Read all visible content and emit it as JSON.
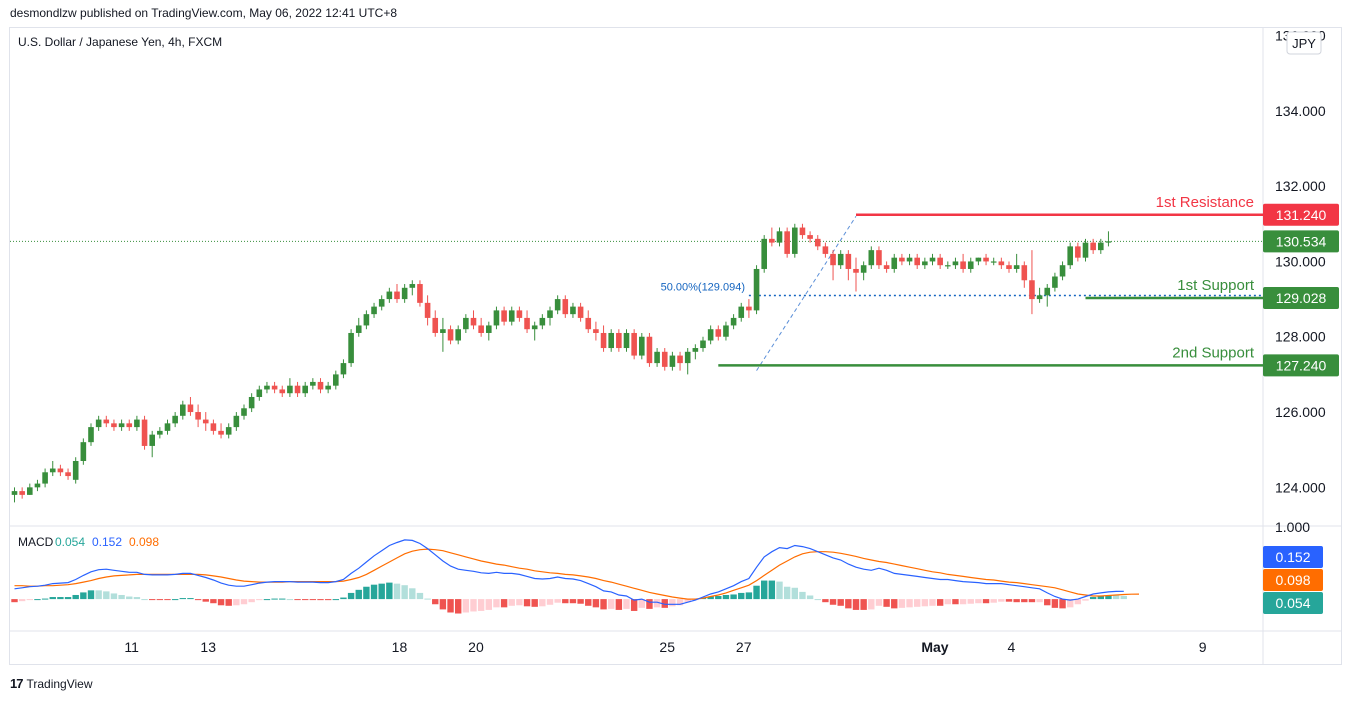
{
  "header": {
    "publisher_line": "desmondlzw published on TradingView.com, May 06, 2022 12:41 UTC+8"
  },
  "footer": {
    "brand": "TradingView"
  },
  "chart_data": {
    "type": "candlestick",
    "title": "U.S. Dollar / Japanese Yen, 4h, FXCM",
    "currency": "JPY",
    "ylim": [
      123.0,
      136.2
    ],
    "y_ticks": [
      "124.000",
      "126.000",
      "128.000",
      "130.000",
      "132.000",
      "134.000",
      "136.000"
    ],
    "x_ticks": [
      "11",
      "13",
      "18",
      "20",
      "25",
      "27",
      "May",
      "4",
      "9"
    ],
    "x_tick_bar_index": [
      8,
      18,
      43,
      53,
      78,
      88,
      113,
      123,
      148
    ],
    "grid": false,
    "colors": {
      "up": "#388e3c",
      "down": "#ef5350",
      "resistance": "#f23645",
      "support": "#388e3c",
      "fib": "#1565c0"
    },
    "candles": [
      [
        123.8,
        124.0,
        123.6,
        123.9
      ],
      [
        123.9,
        124.0,
        123.7,
        123.8
      ],
      [
        123.8,
        124.1,
        123.8,
        124.0
      ],
      [
        124.0,
        124.2,
        123.9,
        124.1
      ],
      [
        124.1,
        124.5,
        124.0,
        124.4
      ],
      [
        124.4,
        124.7,
        124.3,
        124.5
      ],
      [
        124.5,
        124.6,
        124.3,
        124.4
      ],
      [
        124.4,
        124.5,
        124.2,
        124.3
      ],
      [
        124.2,
        124.8,
        124.1,
        124.7
      ],
      [
        124.7,
        125.3,
        124.6,
        125.2
      ],
      [
        125.2,
        125.7,
        125.1,
        125.6
      ],
      [
        125.6,
        125.9,
        125.5,
        125.8
      ],
      [
        125.8,
        125.9,
        125.6,
        125.7
      ],
      [
        125.7,
        125.8,
        125.5,
        125.6
      ],
      [
        125.6,
        125.8,
        125.5,
        125.7
      ],
      [
        125.7,
        125.8,
        125.5,
        125.6
      ],
      [
        125.6,
        125.9,
        125.5,
        125.8
      ],
      [
        125.8,
        125.9,
        125.0,
        125.1
      ],
      [
        125.1,
        125.5,
        124.8,
        125.4
      ],
      [
        125.4,
        125.6,
        125.3,
        125.5
      ],
      [
        125.5,
        125.8,
        125.4,
        125.7
      ],
      [
        125.7,
        126.0,
        125.6,
        125.9
      ],
      [
        125.9,
        126.3,
        125.8,
        126.2
      ],
      [
        126.2,
        126.4,
        125.9,
        126.0
      ],
      [
        126.0,
        126.2,
        125.6,
        125.8
      ],
      [
        125.8,
        126.0,
        125.5,
        125.7
      ],
      [
        125.7,
        125.8,
        125.4,
        125.5
      ],
      [
        125.5,
        125.7,
        125.3,
        125.4
      ],
      [
        125.4,
        125.7,
        125.3,
        125.6
      ],
      [
        125.6,
        126.0,
        125.5,
        125.9
      ],
      [
        125.9,
        126.2,
        125.8,
        126.1
      ],
      [
        126.1,
        126.5,
        126.0,
        126.4
      ],
      [
        126.4,
        126.7,
        126.3,
        126.6
      ],
      [
        126.6,
        126.8,
        126.5,
        126.7
      ],
      [
        126.7,
        126.8,
        126.5,
        126.6
      ],
      [
        126.6,
        126.7,
        126.4,
        126.5
      ],
      [
        126.5,
        126.9,
        126.4,
        126.7
      ],
      [
        126.7,
        126.8,
        126.4,
        126.5
      ],
      [
        126.5,
        126.8,
        126.4,
        126.7
      ],
      [
        126.7,
        126.9,
        126.6,
        126.8
      ],
      [
        126.8,
        126.9,
        126.5,
        126.6
      ],
      [
        126.6,
        126.8,
        126.5,
        126.7
      ],
      [
        126.7,
        127.1,
        126.6,
        127.0
      ],
      [
        127.0,
        127.4,
        126.9,
        127.3
      ],
      [
        127.3,
        128.2,
        127.2,
        128.1
      ],
      [
        128.1,
        128.5,
        128.0,
        128.3
      ],
      [
        128.3,
        128.7,
        128.2,
        128.6
      ],
      [
        128.6,
        128.9,
        128.5,
        128.8
      ],
      [
        128.8,
        129.1,
        128.7,
        129.0
      ],
      [
        129.0,
        129.3,
        128.9,
        129.2
      ],
      [
        129.2,
        129.4,
        128.9,
        129.0
      ],
      [
        129.0,
        129.4,
        128.9,
        129.3
      ],
      [
        129.3,
        129.5,
        129.1,
        129.4
      ],
      [
        129.4,
        129.5,
        128.8,
        128.9
      ],
      [
        128.9,
        129.1,
        128.3,
        128.5
      ],
      [
        128.5,
        128.7,
        128.0,
        128.1
      ],
      [
        128.1,
        128.5,
        127.6,
        128.2
      ],
      [
        128.2,
        128.3,
        127.8,
        127.9
      ],
      [
        127.9,
        128.3,
        127.8,
        128.2
      ],
      [
        128.2,
        128.6,
        128.1,
        128.5
      ],
      [
        128.5,
        128.7,
        128.2,
        128.3
      ],
      [
        128.3,
        128.5,
        128.0,
        128.1
      ],
      [
        128.1,
        128.4,
        127.9,
        128.3
      ],
      [
        128.3,
        128.8,
        128.2,
        128.7
      ],
      [
        128.7,
        128.8,
        128.3,
        128.4
      ],
      [
        128.4,
        128.8,
        128.3,
        128.7
      ],
      [
        128.7,
        128.8,
        128.4,
        128.5
      ],
      [
        128.5,
        128.7,
        128.1,
        128.2
      ],
      [
        128.2,
        128.4,
        127.9,
        128.3
      ],
      [
        128.3,
        128.6,
        128.2,
        128.5
      ],
      [
        128.5,
        128.8,
        128.3,
        128.7
      ],
      [
        128.7,
        129.1,
        128.6,
        129.0
      ],
      [
        129.0,
        129.1,
        128.5,
        128.6
      ],
      [
        128.6,
        128.9,
        128.5,
        128.8
      ],
      [
        128.8,
        128.9,
        128.4,
        128.5
      ],
      [
        128.5,
        128.7,
        128.1,
        128.2
      ],
      [
        128.2,
        128.4,
        127.9,
        128.1
      ],
      [
        128.1,
        128.3,
        127.6,
        127.7
      ],
      [
        127.7,
        128.2,
        127.6,
        128.1
      ],
      [
        128.1,
        128.2,
        127.6,
        127.7
      ],
      [
        127.7,
        128.2,
        127.6,
        128.1
      ],
      [
        128.1,
        128.2,
        127.4,
        127.5
      ],
      [
        127.5,
        128.1,
        127.4,
        128.0
      ],
      [
        128.0,
        128.1,
        127.2,
        127.3
      ],
      [
        127.3,
        127.7,
        127.2,
        127.6
      ],
      [
        127.6,
        127.7,
        127.1,
        127.2
      ],
      [
        127.2,
        127.6,
        127.1,
        127.5
      ],
      [
        127.5,
        127.6,
        127.1,
        127.3
      ],
      [
        127.3,
        127.7,
        127.0,
        127.6
      ],
      [
        127.6,
        127.8,
        127.4,
        127.7
      ],
      [
        127.7,
        128.0,
        127.6,
        127.9
      ],
      [
        127.9,
        128.3,
        127.8,
        128.2
      ],
      [
        128.2,
        128.3,
        127.9,
        128.0
      ],
      [
        128.0,
        128.4,
        127.9,
        128.3
      ],
      [
        128.3,
        128.6,
        128.2,
        128.5
      ],
      [
        128.5,
        128.9,
        128.4,
        128.8
      ],
      [
        128.8,
        129.0,
        128.5,
        128.7
      ],
      [
        128.7,
        129.9,
        128.6,
        129.8
      ],
      [
        129.8,
        130.7,
        129.7,
        130.6
      ],
      [
        130.6,
        130.9,
        130.4,
        130.5
      ],
      [
        130.5,
        130.9,
        130.4,
        130.8
      ],
      [
        130.8,
        130.9,
        130.1,
        130.2
      ],
      [
        130.2,
        131.0,
        130.1,
        130.9
      ],
      [
        130.9,
        131.0,
        130.6,
        130.7
      ],
      [
        130.7,
        130.8,
        130.5,
        130.6
      ],
      [
        130.6,
        130.7,
        130.3,
        130.4
      ],
      [
        130.4,
        130.5,
        130.1,
        130.2
      ],
      [
        130.2,
        130.3,
        129.5,
        129.9
      ],
      [
        129.9,
        130.3,
        129.8,
        130.2
      ],
      [
        130.2,
        130.3,
        129.5,
        129.8
      ],
      [
        129.8,
        130.1,
        129.2,
        129.7
      ],
      [
        129.7,
        130.0,
        129.5,
        129.9
      ],
      [
        129.9,
        130.4,
        129.8,
        130.3
      ],
      [
        130.3,
        130.4,
        129.8,
        129.9
      ],
      [
        129.9,
        130.0,
        129.7,
        129.8
      ],
      [
        129.8,
        130.2,
        129.7,
        130.1
      ],
      [
        130.1,
        130.2,
        129.9,
        130.0
      ],
      [
        130.0,
        130.2,
        129.9,
        130.1
      ],
      [
        130.1,
        130.2,
        129.8,
        129.9
      ],
      [
        129.9,
        130.1,
        129.8,
        130.0
      ],
      [
        130.0,
        130.2,
        129.9,
        130.1
      ],
      [
        130.1,
        130.2,
        129.8,
        129.9
      ],
      [
        129.9,
        130.0,
        129.8,
        129.9
      ],
      [
        129.9,
        130.1,
        129.8,
        130.0
      ],
      [
        130.0,
        130.2,
        129.7,
        129.8
      ],
      [
        129.8,
        130.1,
        129.7,
        130.0
      ],
      [
        130.0,
        130.1,
        129.9,
        130.1
      ],
      [
        130.1,
        130.2,
        129.9,
        130.0
      ],
      [
        130.0,
        130.1,
        129.9,
        130.0
      ],
      [
        130.0,
        130.1,
        129.8,
        129.9
      ],
      [
        129.9,
        130.0,
        129.7,
        129.8
      ],
      [
        129.8,
        130.2,
        129.7,
        129.9
      ],
      [
        129.9,
        130.0,
        129.3,
        129.5
      ],
      [
        129.5,
        130.3,
        128.6,
        129.0
      ],
      [
        129.0,
        129.3,
        128.9,
        129.1
      ],
      [
        129.1,
        129.4,
        128.8,
        129.3
      ],
      [
        129.3,
        129.7,
        129.2,
        129.6
      ],
      [
        129.6,
        130.0,
        129.5,
        129.9
      ],
      [
        129.9,
        130.5,
        129.8,
        130.4
      ],
      [
        130.4,
        130.5,
        130.0,
        130.1
      ],
      [
        130.1,
        130.6,
        130.0,
        130.5
      ],
      [
        130.5,
        130.6,
        130.2,
        130.3
      ],
      [
        130.3,
        130.6,
        130.2,
        130.5
      ],
      [
        130.5,
        130.8,
        130.4,
        130.534
      ]
    ],
    "levels": [
      {
        "name": "1st Resistance",
        "value": "131.240",
        "color": "#f23645"
      },
      {
        "name": "1st Support",
        "value": "129.028",
        "color": "#388e3c"
      },
      {
        "name": "2nd Support",
        "value": "127.240",
        "color": "#388e3c"
      }
    ],
    "current_price": "130.534",
    "fib_label": "50.00%(129.094)",
    "macd": {
      "label": "MACD",
      "values": [
        "0.054",
        "0.152",
        "0.098"
      ],
      "value_colors": [
        "#26a69a",
        "#2962ff",
        "#ff6d00"
      ],
      "top_tick": "1.000",
      "hist_range": [
        -0.6,
        1.4
      ],
      "macd_line": [
        0.2,
        0.22,
        0.24,
        0.25,
        0.27,
        0.3,
        0.31,
        0.32,
        0.38,
        0.46,
        0.53,
        0.57,
        0.58,
        0.56,
        0.54,
        0.52,
        0.52,
        0.48,
        0.47,
        0.47,
        0.47,
        0.48,
        0.5,
        0.5,
        0.46,
        0.42,
        0.37,
        0.31,
        0.27,
        0.25,
        0.25,
        0.28,
        0.31,
        0.33,
        0.34,
        0.34,
        0.34,
        0.33,
        0.33,
        0.33,
        0.32,
        0.32,
        0.34,
        0.38,
        0.5,
        0.6,
        0.72,
        0.84,
        0.94,
        1.04,
        1.1,
        1.15,
        1.14,
        1.08,
        0.98,
        0.86,
        0.74,
        0.64,
        0.58,
        0.56,
        0.54,
        0.51,
        0.5,
        0.52,
        0.5,
        0.5,
        0.48,
        0.44,
        0.4,
        0.39,
        0.4,
        0.43,
        0.4,
        0.39,
        0.36,
        0.3,
        0.24,
        0.16,
        0.14,
        0.08,
        0.06,
        -0.02,
        0.0,
        -0.06,
        -0.06,
        -0.1,
        -0.1,
        -0.1,
        -0.06,
        -0.02,
        0.04,
        0.1,
        0.14,
        0.2,
        0.26,
        0.34,
        0.4,
        0.62,
        0.82,
        0.92,
        1.0,
        0.98,
        1.04,
        1.02,
        0.98,
        0.92,
        0.86,
        0.8,
        0.76,
        0.68,
        0.62,
        0.58,
        0.56,
        0.6,
        0.56,
        0.5,
        0.48,
        0.46,
        0.44,
        0.42,
        0.4,
        0.38,
        0.38,
        0.36,
        0.34,
        0.33,
        0.32,
        0.3,
        0.3,
        0.3,
        0.28,
        0.26,
        0.24,
        0.22,
        0.2,
        0.12,
        0.05,
        0.0,
        -0.02,
        0.0,
        0.05,
        0.1,
        0.12,
        0.14,
        0.15,
        0.152
      ],
      "signal_line": [
        0.26,
        0.26,
        0.25,
        0.25,
        0.26,
        0.26,
        0.27,
        0.28,
        0.3,
        0.33,
        0.36,
        0.4,
        0.43,
        0.45,
        0.46,
        0.47,
        0.48,
        0.48,
        0.48,
        0.48,
        0.48,
        0.48,
        0.48,
        0.48,
        0.48,
        0.47,
        0.45,
        0.43,
        0.4,
        0.37,
        0.35,
        0.34,
        0.33,
        0.33,
        0.33,
        0.33,
        0.34,
        0.34,
        0.34,
        0.34,
        0.34,
        0.34,
        0.34,
        0.35,
        0.38,
        0.42,
        0.48,
        0.56,
        0.64,
        0.72,
        0.8,
        0.88,
        0.93,
        0.96,
        0.97,
        0.96,
        0.94,
        0.9,
        0.86,
        0.82,
        0.78,
        0.74,
        0.71,
        0.68,
        0.66,
        0.63,
        0.6,
        0.58,
        0.55,
        0.53,
        0.51,
        0.5,
        0.48,
        0.47,
        0.45,
        0.43,
        0.4,
        0.36,
        0.33,
        0.29,
        0.25,
        0.21,
        0.17,
        0.13,
        0.1,
        0.07,
        0.04,
        0.02,
        0.0,
        0.0,
        0.02,
        0.05,
        0.08,
        0.12,
        0.17,
        0.22,
        0.27,
        0.36,
        0.46,
        0.56,
        0.66,
        0.74,
        0.82,
        0.88,
        0.91,
        0.92,
        0.92,
        0.91,
        0.89,
        0.86,
        0.83,
        0.79,
        0.76,
        0.73,
        0.71,
        0.68,
        0.65,
        0.62,
        0.59,
        0.56,
        0.53,
        0.51,
        0.48,
        0.46,
        0.44,
        0.42,
        0.4,
        0.38,
        0.37,
        0.35,
        0.33,
        0.32,
        0.3,
        0.28,
        0.26,
        0.24,
        0.22,
        0.18,
        0.14,
        0.1,
        0.08,
        0.06,
        0.06,
        0.07,
        0.08,
        0.09,
        0.095,
        0.098
      ]
    }
  }
}
